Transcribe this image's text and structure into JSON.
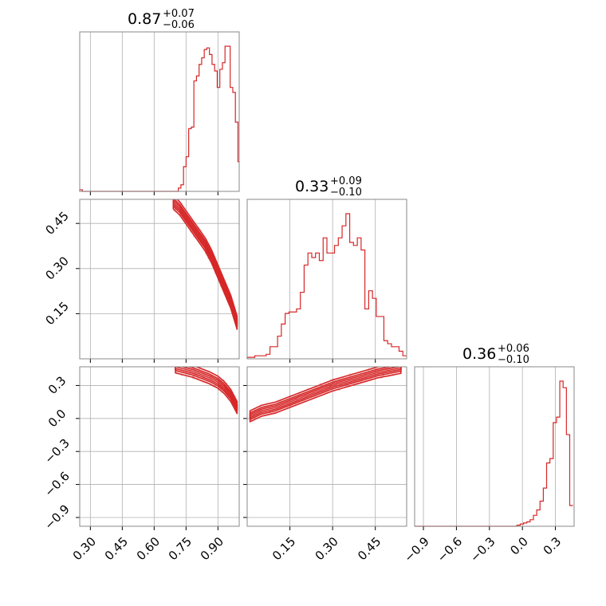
{
  "colors": {
    "accent": "#d62728",
    "grid": "#b0b0b0",
    "frame": "#888888"
  },
  "chart_data": [
    {
      "type": "histogram",
      "parameter_index": 0,
      "title": {
        "value": "0.87",
        "plus": "+0.07",
        "minus": "−0.06"
      },
      "xlim": [
        0.25,
        1.0
      ],
      "xticks": [
        0.3,
        0.45,
        0.6,
        0.75,
        0.9
      ],
      "bin_edges": [
        0.25,
        0.2622,
        0.2744,
        0.2866,
        0.2988,
        0.311,
        0.3232,
        0.3354,
        0.3476,
        0.3598,
        0.372,
        0.3842,
        0.3964,
        0.4086,
        0.4208,
        0.433,
        0.4452,
        0.4574,
        0.4696,
        0.4818,
        0.494,
        0.5062,
        0.5184,
        0.5306,
        0.5428,
        0.555,
        0.5672,
        0.5794,
        0.5916,
        0.6038,
        0.616,
        0.6282,
        0.6404,
        0.6526,
        0.6648,
        0.677,
        0.6892,
        0.7014,
        0.7136,
        0.7258,
        0.738,
        0.7502,
        0.7624,
        0.7746,
        0.7868,
        0.799,
        0.8112,
        0.8234,
        0.8356,
        0.8478,
        0.86,
        0.8722,
        0.8844,
        0.8966,
        0.9088,
        0.921,
        0.9332,
        0.9454,
        0.9576,
        0.9698,
        0.982,
        0.9942,
        1.0
      ],
      "counts": [
        1,
        0,
        0,
        0,
        0,
        0,
        0,
        0,
        0,
        0,
        0,
        0,
        0,
        0,
        0,
        0,
        0,
        0,
        0,
        0,
        0,
        0,
        0,
        0,
        0,
        0,
        0,
        0,
        0,
        0,
        0,
        0,
        0,
        0,
        0,
        0,
        0,
        0,
        2,
        4,
        15,
        21,
        38,
        39,
        67,
        70,
        77,
        81,
        86,
        87,
        83,
        77,
        73,
        63,
        74,
        78,
        88,
        88,
        63,
        60,
        42,
        18
      ]
    },
    {
      "type": "histogram",
      "parameter_index": 1,
      "title": {
        "value": "0.33",
        "plus": "+0.09",
        "minus": "−0.10"
      },
      "xlim": [
        0.0,
        0.56
      ],
      "xticks": [
        0.15,
        0.3,
        0.45
      ],
      "bin_edges": [
        0.0,
        0.0133,
        0.0267,
        0.04,
        0.0533,
        0.0667,
        0.08,
        0.0933,
        0.1067,
        0.12,
        0.1333,
        0.1467,
        0.16,
        0.1733,
        0.1867,
        0.2,
        0.2133,
        0.2267,
        0.24,
        0.2533,
        0.2667,
        0.28,
        0.2933,
        0.3067,
        0.32,
        0.3333,
        0.3467,
        0.36,
        0.3733,
        0.3867,
        0.4,
        0.4133,
        0.4267,
        0.44,
        0.4533,
        0.4667,
        0.48,
        0.4933,
        0.5067,
        0.52,
        0.5333,
        0.5467,
        0.56
      ],
      "counts": [
        1,
        1,
        2,
        2,
        2,
        3,
        8,
        8,
        15,
        23,
        30,
        31,
        31,
        33,
        44,
        62,
        70,
        67,
        70,
        65,
        80,
        70,
        70,
        75,
        80,
        88,
        96,
        77,
        75,
        80,
        72,
        33,
        45,
        40,
        28,
        28,
        12,
        10,
        8,
        8,
        5,
        2
      ]
    },
    {
      "type": "histogram",
      "parameter_index": 2,
      "title": {
        "value": "0.36",
        "plus": "+0.06",
        "minus": "−0.10"
      },
      "xlim": [
        -0.98,
        0.47
      ],
      "xticks": [
        -0.9,
        -0.6,
        -0.3,
        0.0,
        0.3
      ],
      "bin_edges": [
        -0.98,
        -0.95,
        -0.92,
        -0.89,
        -0.86,
        -0.83,
        -0.8,
        -0.77,
        -0.74,
        -0.71,
        -0.68,
        -0.65,
        -0.62,
        -0.59,
        -0.56,
        -0.53,
        -0.5,
        -0.47,
        -0.44,
        -0.41,
        -0.38,
        -0.35,
        -0.32,
        -0.29,
        -0.26,
        -0.23,
        -0.2,
        -0.17,
        -0.14,
        -0.11,
        -0.08,
        -0.05,
        -0.02,
        0.01,
        0.04,
        0.07,
        0.1,
        0.13,
        0.16,
        0.19,
        0.22,
        0.25,
        0.28,
        0.31,
        0.34,
        0.37,
        0.4,
        0.43,
        0.46
      ],
      "counts": [
        0,
        0,
        0,
        0,
        0,
        0,
        0,
        0,
        0,
        0,
        0,
        0,
        0,
        0,
        0,
        0,
        0,
        0,
        0,
        0,
        0,
        0,
        0,
        0,
        0,
        0,
        0,
        0,
        0,
        0,
        0,
        1,
        2,
        3,
        4,
        6,
        10,
        15,
        23,
        35,
        58,
        62,
        95,
        100,
        133,
        127,
        84,
        19
      ]
    },
    {
      "type": "contour",
      "pair": [
        0,
        1
      ],
      "xlim": [
        0.25,
        1.0
      ],
      "ylim": [
        0.0,
        0.53
      ],
      "xticks": [
        0.3,
        0.45,
        0.6,
        0.75,
        0.9
      ],
      "yticks": [
        0.15,
        0.3,
        0.45
      ],
      "ridge_x": [
        0.69,
        0.72,
        0.75,
        0.78,
        0.81,
        0.84,
        0.87,
        0.9,
        0.93,
        0.96,
        0.99
      ],
      "ridge_y": [
        0.52,
        0.5,
        0.47,
        0.44,
        0.41,
        0.38,
        0.34,
        0.29,
        0.24,
        0.19,
        0.12
      ],
      "width": 0.022
    },
    {
      "type": "contour",
      "pair": [
        0,
        2
      ],
      "xlim": [
        0.25,
        1.0
      ],
      "ylim": [
        -0.98,
        0.47
      ],
      "xticks": [
        0.3,
        0.45,
        0.6,
        0.75,
        0.9
      ],
      "yticks": [
        -0.9,
        -0.6,
        -0.3,
        0.0,
        0.3
      ],
      "ridge_x": [
        0.7,
        0.74,
        0.78,
        0.82,
        0.86,
        0.9,
        0.93,
        0.96,
        0.99
      ],
      "ridge_y": [
        0.47,
        0.45,
        0.43,
        0.4,
        0.37,
        0.33,
        0.28,
        0.21,
        0.1
      ],
      "width": 0.055
    },
    {
      "type": "contour",
      "pair": [
        1,
        2
      ],
      "xlim": [
        0.0,
        0.56
      ],
      "ylim": [
        -0.98,
        0.47
      ],
      "xticks": [
        0.15,
        0.3,
        0.45
      ],
      "yticks": [
        -0.9,
        -0.6,
        -0.3,
        0.0,
        0.3
      ],
      "ridge_x": [
        0.01,
        0.05,
        0.1,
        0.14,
        0.18,
        0.22,
        0.26,
        0.3,
        0.34,
        0.38,
        0.42,
        0.46,
        0.5,
        0.54
      ],
      "ridge_y": [
        0.02,
        0.07,
        0.1,
        0.14,
        0.18,
        0.22,
        0.26,
        0.3,
        0.33,
        0.36,
        0.39,
        0.42,
        0.44,
        0.46
      ],
      "width": 0.05
    }
  ]
}
